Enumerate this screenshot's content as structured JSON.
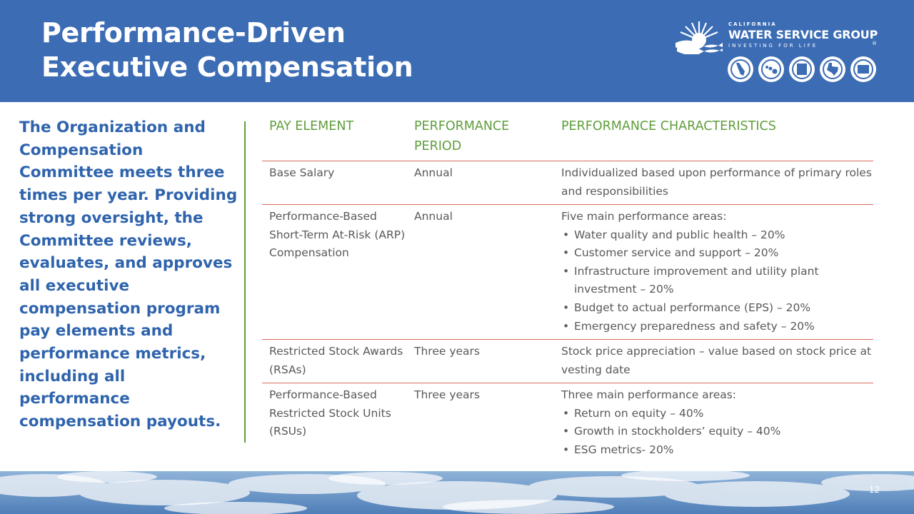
{
  "header": {
    "title_line1": "Performance-Driven",
    "title_line2": "Executive Compensation"
  },
  "logo": {
    "state": "CALIFORNIA",
    "name": "WATER SERVICE GROUP",
    "tagline": "INVESTING FOR LIFE",
    "registered": "®",
    "seals": [
      "CALIFORNIA WATER SERVICE",
      "HAWAII WATER SERVICE",
      "NEW MEXICO WATER SERVICE",
      "TEXAS WATER SERVICE",
      "WASHINGTON WATER SERVICE"
    ]
  },
  "intro": "The Organization and Compensation Committee meets three times per year. Providing strong oversight, the Committee reviews, evaluates, and approves all executive compensation program pay elements and performance metrics, including all performance compensation payouts.",
  "table": {
    "headers": [
      "PAY ELEMENT",
      "PERFORMANCE PERIOD",
      "PERFORMANCE CHARACTERISTICS"
    ],
    "rows": [
      {
        "element": "Base Salary",
        "period": "Annual",
        "text": "Individualized based upon performance of primary roles and responsibilities",
        "bullets": []
      },
      {
        "element": "Performance-Based Short-Term At-Risk (ARP) Compensation",
        "period": "Annual",
        "text": "Five main performance areas:",
        "bullets": [
          "Water quality and public health – 20%",
          "Customer service and support – 20%",
          "Infrastructure improvement and utility plant investment – 20%",
          "Budget to actual performance (EPS) – 20%",
          "Emergency preparedness and safety – 20%"
        ]
      },
      {
        "element": "Restricted Stock Awards (RSAs)",
        "period": "Three years",
        "text": "Stock price appreciation – value based on stock price at vesting date",
        "bullets": []
      },
      {
        "element": "Performance-Based Restricted Stock Units (RSUs)",
        "period": "Three years",
        "text": "Three main performance areas:",
        "bullets": [
          "Return on equity – 40%",
          "Growth in stockholders’ equity – 40%",
          "ESG metrics- 20%"
        ]
      }
    ]
  },
  "page_number": "12",
  "colors": {
    "header_blue": "#3b6cb4",
    "intro_blue": "#2f64ad",
    "accent_green": "#5f9e3b",
    "rule_red": "#d96c5f",
    "body_gray": "#595959"
  }
}
